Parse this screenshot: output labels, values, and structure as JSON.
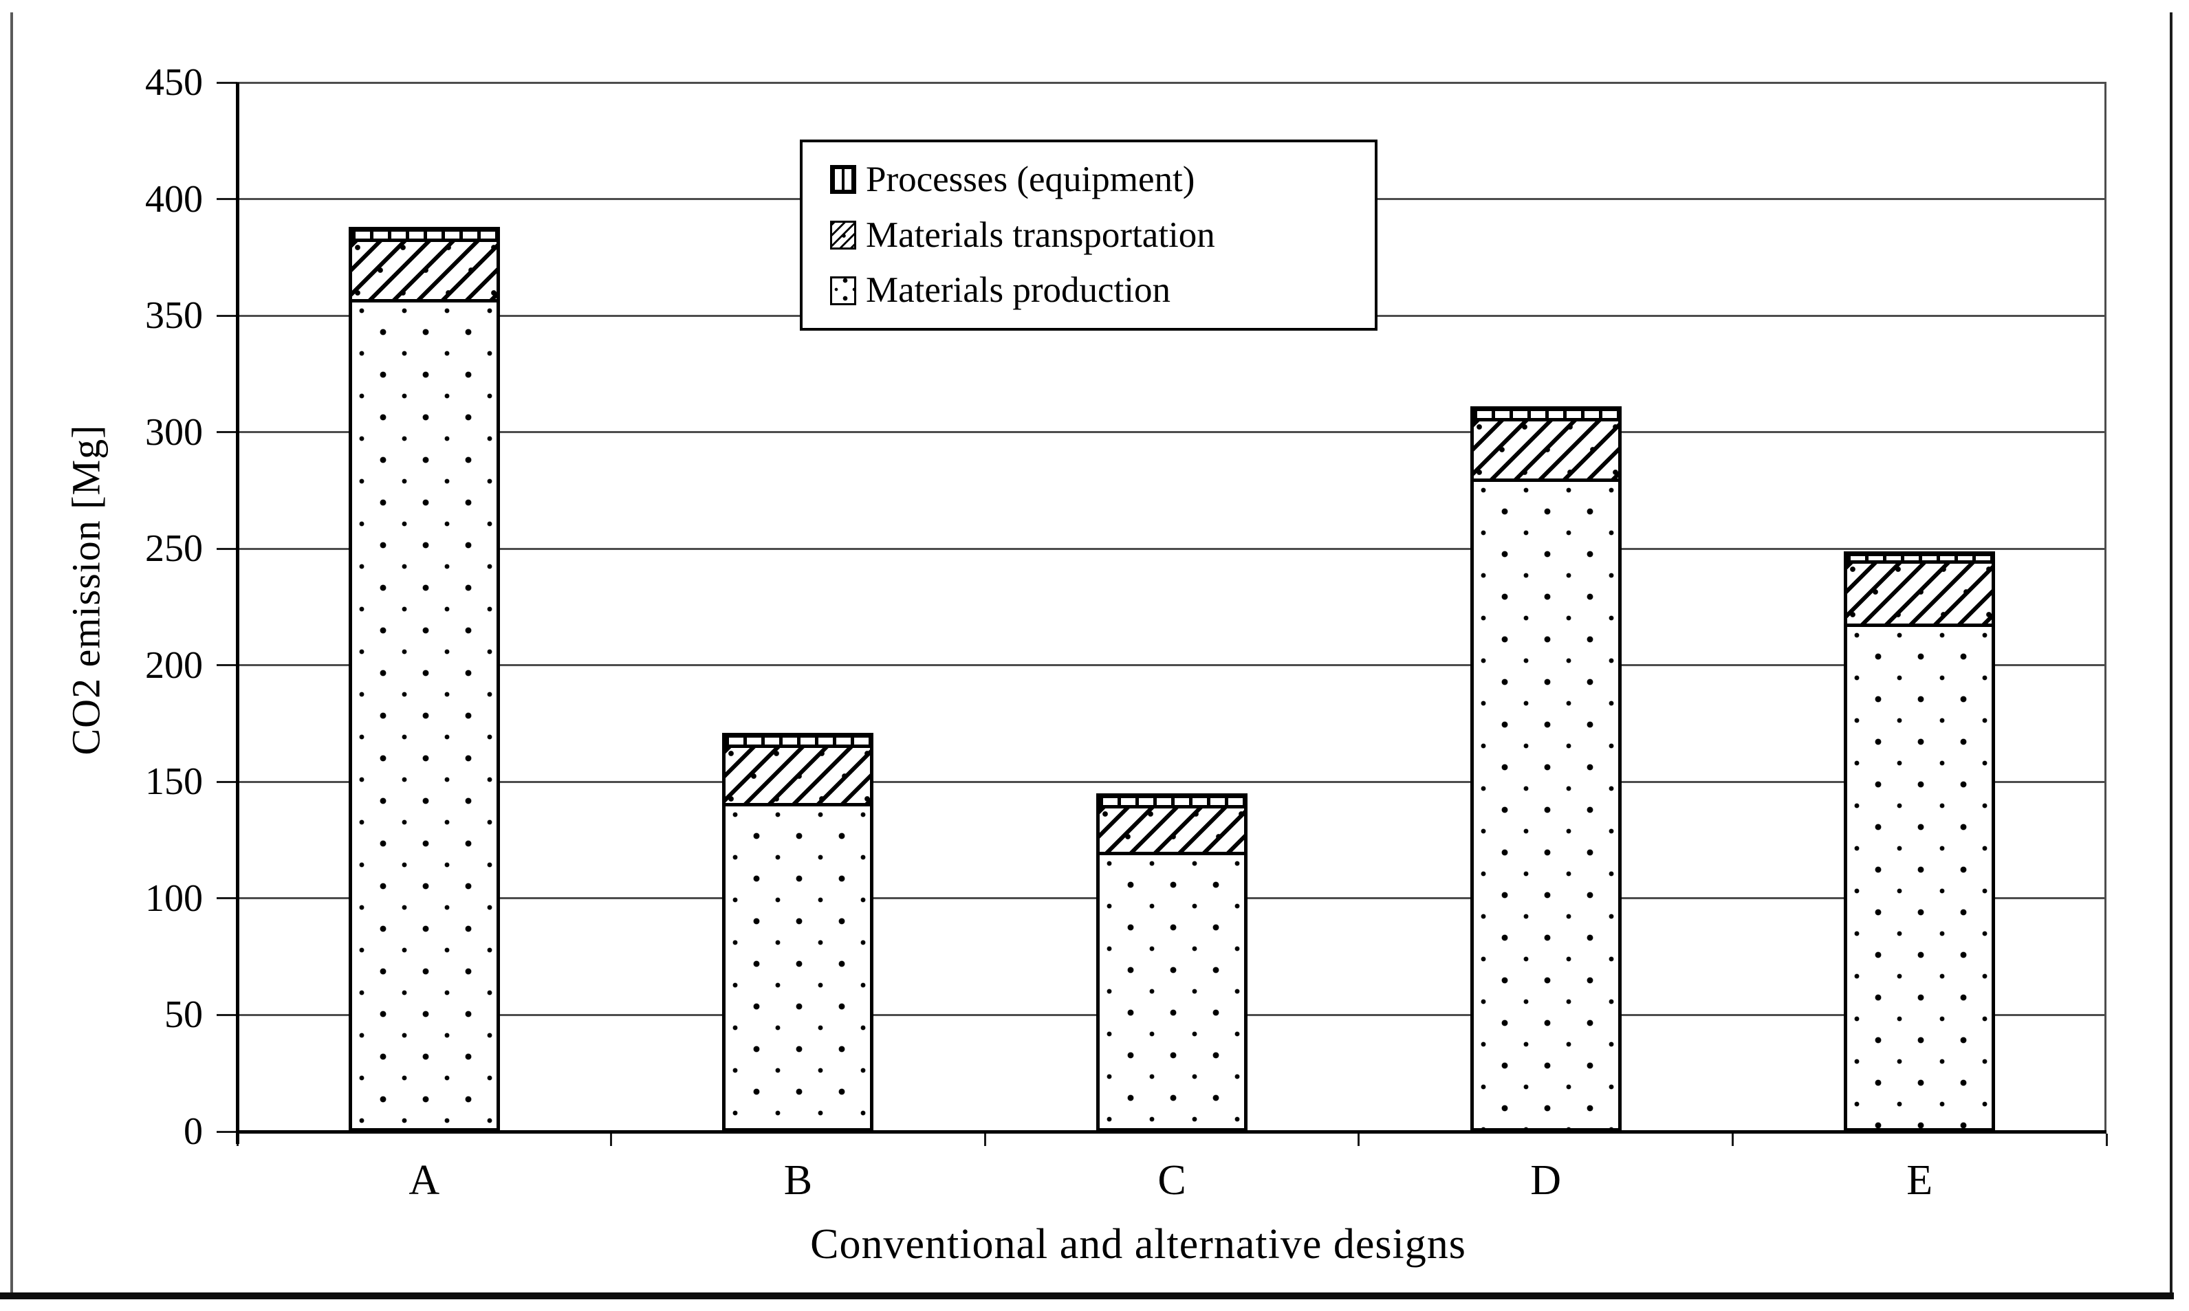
{
  "figure": {
    "background": "#ffffff",
    "accent_color": "#000000",
    "gridline_color": "#4d4d4d"
  },
  "chart_data": {
    "type": "bar",
    "stacked": true,
    "title": "",
    "xlabel": "Conventional and alternative designs",
    "ylabel": "CO2 emission [Mg]",
    "categories": [
      "A",
      "B",
      "C",
      "D",
      "E"
    ],
    "series": [
      {
        "name": "Materials production",
        "pattern": "dots",
        "values": [
          357,
          141,
          120,
          280,
          218
        ]
      },
      {
        "name": "Materials transportation",
        "pattern": "diagonal-hatch",
        "values": [
          26,
          25,
          20,
          26,
          27
        ]
      },
      {
        "name": "Processes (equipment)",
        "pattern": "vertical-hatch",
        "values": [
          5,
          5,
          5,
          5,
          4
        ]
      }
    ],
    "totals": [
      388,
      171,
      145,
      311,
      249
    ],
    "ylim": [
      0,
      450
    ],
    "ytick_step": 50,
    "yticks": [
      0,
      50,
      100,
      150,
      200,
      250,
      300,
      350,
      400,
      450
    ],
    "grid": true,
    "legend": {
      "position": "top-center",
      "items": [
        "Processes (equipment)",
        "Materials transportation",
        "Materials production"
      ]
    }
  }
}
